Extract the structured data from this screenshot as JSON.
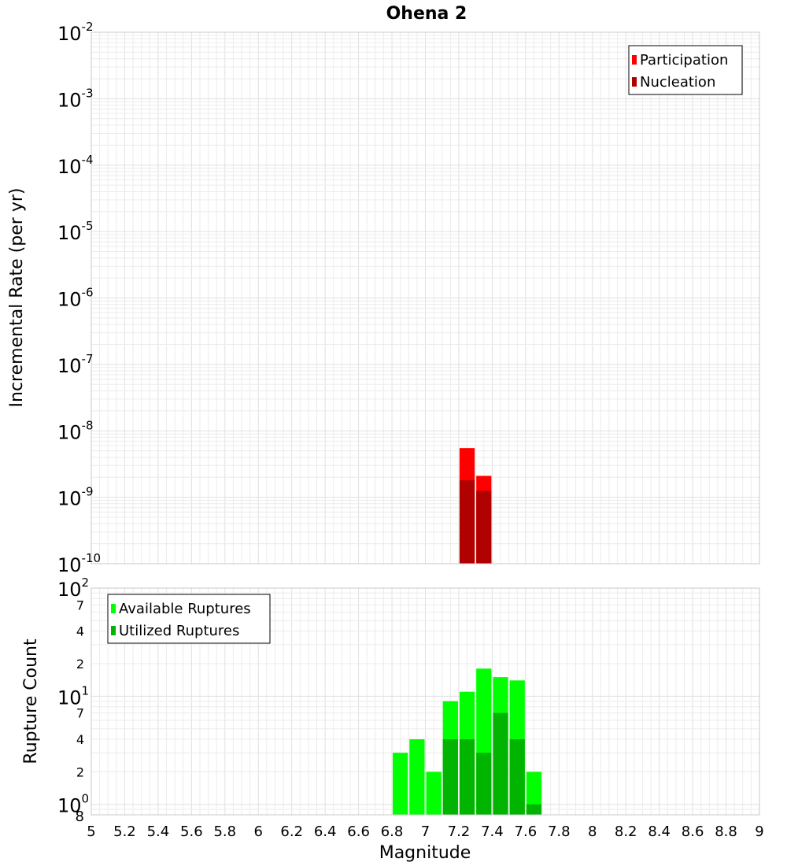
{
  "chart_data": {
    "title": "Ohena 2",
    "xlabel": "Magnitude",
    "x_ticks": [
      "5",
      "5.2",
      "5.4",
      "5.6",
      "5.8",
      "6",
      "6.2",
      "6.4",
      "6.6",
      "6.8",
      "7",
      "7.2",
      "7.4",
      "7.6",
      "7.8",
      "8",
      "8.2",
      "8.4",
      "8.6",
      "8.8",
      "9"
    ],
    "xlim": [
      5,
      9
    ],
    "panels": [
      {
        "type": "bar",
        "ylabel": "Incremental Rate (per yr)",
        "yscale": "log",
        "ylim": [
          1e-10,
          0.01
        ],
        "y_ticks": [
          {
            "base": "10",
            "exp": "-2"
          },
          {
            "base": "10",
            "exp": "-3"
          },
          {
            "base": "10",
            "exp": "-4"
          },
          {
            "base": "10",
            "exp": "-5"
          },
          {
            "base": "10",
            "exp": "-6"
          },
          {
            "base": "10",
            "exp": "-7"
          },
          {
            "base": "10",
            "exp": "-8"
          },
          {
            "base": "10",
            "exp": "-9"
          },
          {
            "base": "10",
            "exp": "-10"
          }
        ],
        "legend": {
          "position": "top-right",
          "entries": [
            {
              "name": "Participation",
              "color": "#ff0000"
            },
            {
              "name": "Nucleation",
              "color": "#b00000"
            }
          ]
        },
        "bar_width": 0.1,
        "series": [
          {
            "name": "Participation",
            "color": "#ff0000",
            "x": [
              7.25,
              7.35
            ],
            "values": [
              5.5e-09,
              2.1e-09
            ]
          },
          {
            "name": "Nucleation",
            "color": "#b00000",
            "x": [
              7.25,
              7.35
            ],
            "values": [
              1.8e-09,
              1.25e-09
            ]
          }
        ]
      },
      {
        "type": "bar",
        "ylabel": "Rupture Count",
        "yscale": "log",
        "ylim": [
          0.8,
          100
        ],
        "y_major_ticks": [
          {
            "base": "10",
            "exp": "2"
          },
          {
            "base": "10",
            "exp": "1"
          },
          {
            "base": "10",
            "exp": "0"
          }
        ],
        "y_minor_ticks": [
          "7",
          "4",
          "2",
          "7",
          "4",
          "2",
          "8"
        ],
        "legend": {
          "position": "top-left",
          "entries": [
            {
              "name": "Available Ruptures",
              "color": "#00ff00"
            },
            {
              "name": "Utilized Ruptures",
              "color": "#00b400"
            }
          ]
        },
        "bar_width": 0.1,
        "series": [
          {
            "name": "Available Ruptures",
            "color": "#00ff00",
            "x": [
              6.85,
              6.95,
              7.05,
              7.15,
              7.25,
              7.35,
              7.45,
              7.55,
              7.65
            ],
            "values": [
              3,
              4,
              2,
              9,
              11,
              18,
              15,
              14,
              2
            ]
          },
          {
            "name": "Utilized Ruptures",
            "color": "#00b400",
            "x": [
              7.15,
              7.25,
              7.35,
              7.45,
              7.55,
              7.65
            ],
            "values": [
              4,
              4,
              3,
              7,
              4,
              1
            ]
          }
        ]
      }
    ]
  }
}
